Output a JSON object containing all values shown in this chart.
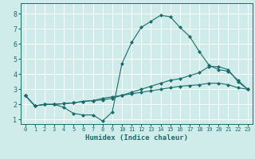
{
  "xlabel": "Humidex (Indice chaleur)",
  "background_color": "#d0ecea",
  "grid_color": "#ffffff",
  "line_color": "#1a6b6b",
  "xlim": [
    -0.5,
    23.5
  ],
  "ylim": [
    0.7,
    8.7
  ],
  "x_ticks": [
    0,
    1,
    2,
    3,
    4,
    5,
    6,
    7,
    8,
    9,
    10,
    11,
    12,
    13,
    14,
    15,
    16,
    17,
    18,
    19,
    20,
    21,
    22,
    23
  ],
  "y_ticks": [
    1,
    2,
    3,
    4,
    5,
    6,
    7,
    8
  ],
  "curve1_x": [
    0,
    1,
    2,
    3,
    4,
    5,
    6,
    7,
    8,
    9,
    10,
    11,
    12,
    13,
    14,
    15,
    16,
    17,
    18,
    19,
    20,
    21,
    22,
    23
  ],
  "curve1_y": [
    2.6,
    1.9,
    2.0,
    2.0,
    1.8,
    1.4,
    1.3,
    1.3,
    0.9,
    1.5,
    4.7,
    6.1,
    7.1,
    7.5,
    7.9,
    7.8,
    7.1,
    6.5,
    5.5,
    4.6,
    4.3,
    4.2,
    3.6,
    3.0
  ],
  "curve2_x": [
    0,
    1,
    2,
    3,
    4,
    5,
    6,
    7,
    8,
    9,
    10,
    11,
    12,
    13,
    14,
    15,
    16,
    17,
    18,
    19,
    20,
    21,
    22,
    23
  ],
  "curve2_y": [
    2.6,
    1.9,
    2.0,
    2.0,
    2.05,
    2.1,
    2.2,
    2.25,
    2.3,
    2.4,
    2.6,
    2.8,
    3.0,
    3.2,
    3.4,
    3.6,
    3.7,
    3.9,
    4.1,
    4.5,
    4.5,
    4.3,
    3.5,
    3.0
  ],
  "curve3_x": [
    0,
    1,
    2,
    3,
    4,
    5,
    6,
    7,
    8,
    9,
    10,
    11,
    12,
    13,
    14,
    15,
    16,
    17,
    18,
    19,
    20,
    21,
    22,
    23
  ],
  "curve3_y": [
    2.6,
    1.9,
    2.0,
    2.0,
    2.05,
    2.1,
    2.2,
    2.25,
    2.4,
    2.5,
    2.6,
    2.7,
    2.8,
    2.9,
    3.0,
    3.1,
    3.2,
    3.25,
    3.3,
    3.4,
    3.4,
    3.3,
    3.1,
    3.0
  ]
}
